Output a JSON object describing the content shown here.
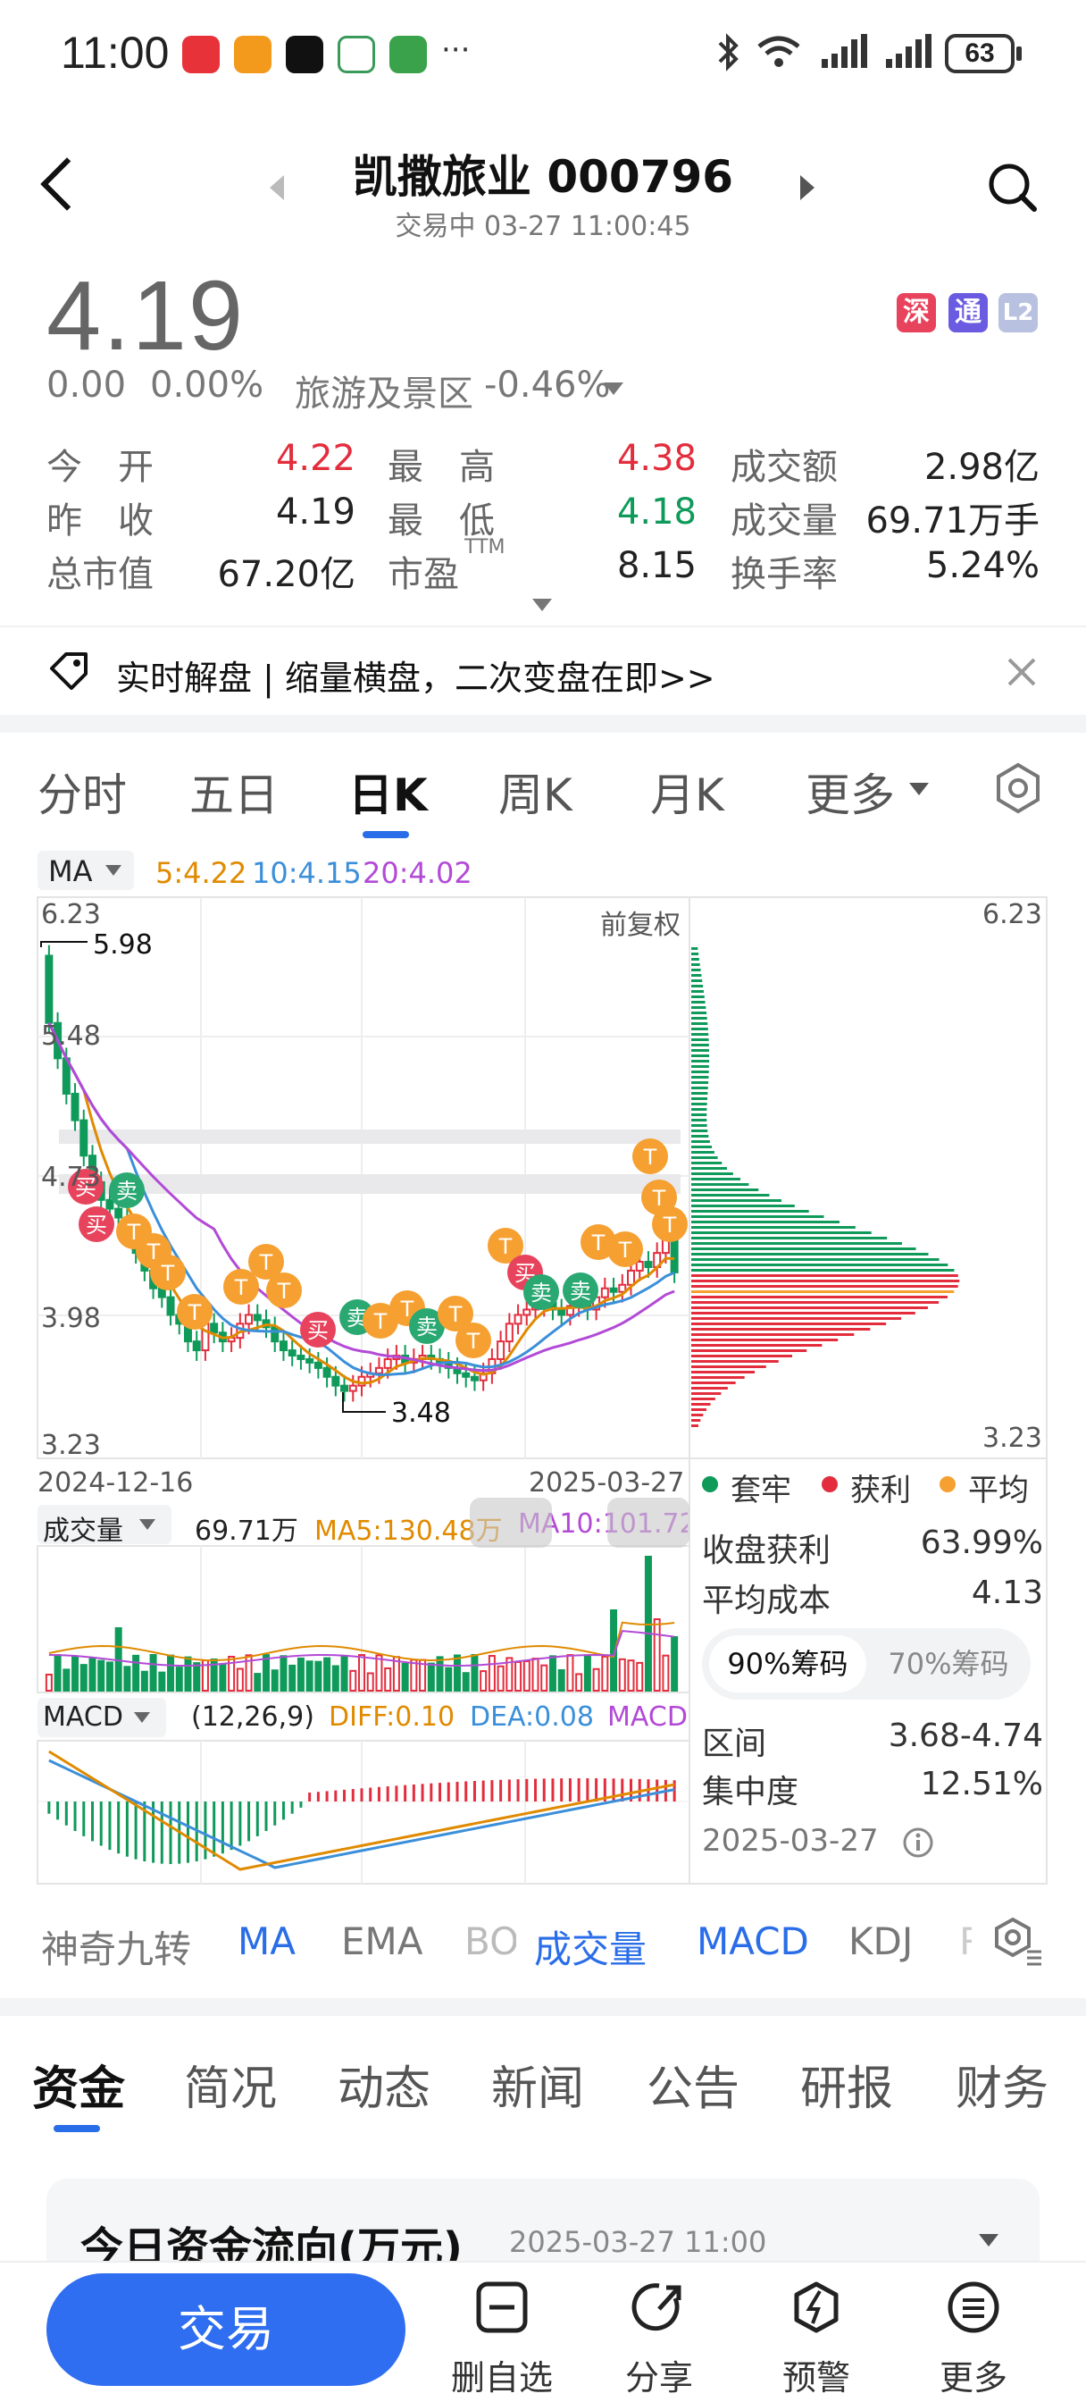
{
  "status_bar": {
    "time": "11:00",
    "battery": "63",
    "more": "···",
    "icons": [
      "red-app-icon",
      "orange-app-icon",
      "tiktok-icon",
      "green-app-icon",
      "game-app-icon",
      "bluetooth-icon",
      "wifi-icon",
      "signal-icon",
      "signal-icon-2",
      "battery-icon"
    ]
  },
  "header": {
    "title": "凯撒旅业 000796",
    "subtitle": "交易中 03-27 11:00:45"
  },
  "quote": {
    "price": "4.19",
    "change": "0.00",
    "change_pct": "0.00%",
    "sector": "旅游及景区",
    "sector_change": "-0.46%",
    "badges": [
      "深",
      "通",
      "L2"
    ],
    "stats": [
      {
        "label": "今　开",
        "value": "4.22",
        "color": "red"
      },
      {
        "label": "最　高",
        "value": "4.38",
        "color": "red"
      },
      {
        "label": "成交额",
        "value": "2.98亿",
        "color": "black"
      },
      {
        "label": "昨　收",
        "value": "4.19",
        "color": "black"
      },
      {
        "label": "最　低",
        "value": "4.18",
        "color": "green"
      },
      {
        "label": "成交量",
        "value": "69.71万手",
        "color": "black"
      },
      {
        "label": "总市值",
        "value": "67.20亿",
        "color": "black"
      },
      {
        "label": "市盈",
        "value": "8.15",
        "color": "black"
      },
      {
        "label": "换手率",
        "value": "5.24%",
        "color": "black"
      }
    ],
    "pe_superscript": "TTM"
  },
  "banner": {
    "text": "实时解盘 | 缩量横盘，二次变盘在即>>"
  },
  "period_tabs": [
    "分时",
    "五日",
    "日K",
    "周K",
    "月K",
    "更多"
  ],
  "active_period": "日K",
  "chart": {
    "ma_selector": "MA",
    "ma_values": [
      {
        "label": "5:4.22",
        "color": "#e08a00"
      },
      {
        "label": "10:4.15",
        "color": "#3b8fd9"
      },
      {
        "label": "20:4.02",
        "color": "#b24ad6"
      }
    ],
    "adjust": "前复权",
    "y_left": [
      "6.23",
      "5.48",
      "4.73",
      "3.98",
      "3.23"
    ],
    "y_right_top": "6.23",
    "y_right_bottom": "3.23",
    "marker_high": "5.98",
    "marker_low": "3.48",
    "date_start": "2024-12-16",
    "date_end": "2025-03-27",
    "volume_label": "成交量",
    "volume_value": "69.71万",
    "vol_ma5": "MA5:130.48万",
    "vol_ma10": "MA10:101.72",
    "macd_label": "MACD",
    "macd_params": "(12,26,9)",
    "diff": "DIFF:0.10",
    "dea": "DEA:0.08",
    "macd_tail": "MACD",
    "colors": {
      "up": "#e32d3d",
      "down": "#0f9a5a",
      "ma5": "#e08a00",
      "ma10": "#3b8fd9",
      "ma20": "#b24ad6"
    }
  },
  "chart_data": {
    "type": "candlestick",
    "x_range": [
      "2024-12-16",
      "2025-03-27"
    ],
    "ylim": [
      3.23,
      6.23
    ],
    "high_marker": 5.98,
    "low_marker": 3.48,
    "ma_last": {
      "MA5": 4.22,
      "MA10": 4.15,
      "MA20": 4.02
    },
    "volume_last": "69.71万",
    "macd": {
      "DIFF": 0.1,
      "DEA": 0.08,
      "params": [
        12,
        26,
        9
      ]
    }
  },
  "chips": {
    "legend": [
      {
        "label": "套牢",
        "color": "#0f9a5a"
      },
      {
        "label": "获利",
        "color": "#e32d3d"
      },
      {
        "label": "平均",
        "color": "#f5a030"
      }
    ],
    "rows": [
      {
        "label": "收盘获利",
        "value": "63.99%"
      },
      {
        "label": "平均成本",
        "value": "4.13"
      }
    ],
    "toggle": [
      "90%筹码",
      "70%筹码"
    ],
    "rows2": [
      {
        "label": "区间",
        "value": "3.68-4.74"
      },
      {
        "label": "集中度",
        "value": "12.51%"
      }
    ],
    "date": "2025-03-27"
  },
  "indicator_tabs": [
    "神奇九转",
    "MA",
    "EMA",
    "BO",
    "成交量",
    "MACD",
    "KDJ",
    "R"
  ],
  "bottom_tabs": [
    "资金",
    "简况",
    "动态",
    "新闻",
    "公告",
    "研报",
    "财务"
  ],
  "flow": {
    "title": "今日资金流向(万元)",
    "time": "2025-03-27 11:00"
  },
  "nav": {
    "trade": "交易",
    "items": [
      "删自选",
      "分享",
      "预警",
      "更多"
    ]
  }
}
